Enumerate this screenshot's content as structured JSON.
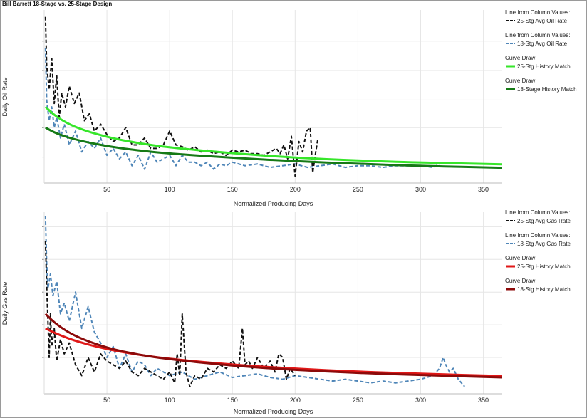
{
  "title": "Bill Barrett 18-Stage vs. 25-Stage Design",
  "colors": {
    "black_series": "#111111",
    "blue_series": "#4f86b8",
    "light_green": "#36e62a",
    "dark_green": "#167a16",
    "red": "#e01818",
    "dark_red": "#8c0a0a",
    "grid": "#e6e6e6"
  },
  "chart_data": [
    {
      "type": "line",
      "title": "",
      "xlabel": "Normalized Producing Days",
      "ylabel": "Daily Oil Rate",
      "xlim": [
        0,
        365
      ],
      "ylim": [
        0,
        100
      ],
      "xticks": [
        50,
        100,
        150,
        200,
        250,
        300,
        350
      ],
      "grid": true,
      "legend_position": "right",
      "legend": [
        {
          "header": "Line from Column Values:",
          "label": "25-Stg Avg Oil Rate"
        },
        {
          "header": "Line from Column Values:",
          "label": "18-Stg Avg Oil Rate"
        },
        {
          "header": "Curve Draw:",
          "label": "25-Stg History Match"
        },
        {
          "header": "Curve Draw:",
          "label": "18-Stage History Match"
        }
      ],
      "series": [
        {
          "name": "25-Stg Avg Oil Rate",
          "style": "dashed",
          "color_key": "black_series",
          "x": [
            1,
            2,
            4,
            6,
            8,
            10,
            12,
            14,
            17,
            20,
            24,
            28,
            32,
            36,
            40,
            45,
            50,
            55,
            60,
            65,
            70,
            75,
            80,
            85,
            90,
            95,
            100,
            105,
            110,
            115,
            120,
            125,
            130,
            135,
            140,
            145,
            150,
            155,
            160,
            165,
            170,
            175,
            180,
            185,
            188,
            191,
            194,
            197,
            200,
            203,
            206,
            209,
            212,
            214,
            216,
            218
          ],
          "values": [
            96,
            68,
            54,
            72,
            46,
            62,
            38,
            52,
            44,
            56,
            46,
            52,
            36,
            40,
            30,
            34,
            28,
            24,
            26,
            32,
            22,
            22,
            26,
            20,
            20,
            22,
            30,
            22,
            21,
            19,
            21,
            18,
            19,
            17,
            18,
            16,
            19,
            18,
            19,
            17,
            17,
            16,
            18,
            20,
            17,
            22,
            14,
            27,
            4,
            24,
            18,
            30,
            32,
            6,
            16,
            25
          ]
        },
        {
          "name": "18-Stg Avg Oil Rate",
          "style": "dashed",
          "color_key": "blue_series",
          "x": [
            1,
            2,
            4,
            6,
            8,
            10,
            13,
            16,
            20,
            25,
            30,
            35,
            40,
            45,
            50,
            55,
            60,
            65,
            70,
            75,
            80,
            85,
            90,
            95,
            100,
            105,
            110,
            115,
            120,
            125,
            130,
            135,
            140,
            145,
            150,
            160,
            170,
            180,
            190,
            200,
            210,
            220,
            230,
            240,
            250,
            260,
            270,
            280,
            290,
            300,
            310,
            315
          ],
          "values": [
            78,
            48,
            36,
            44,
            32,
            38,
            26,
            34,
            22,
            30,
            18,
            24,
            20,
            26,
            16,
            20,
            14,
            18,
            10,
            16,
            8,
            18,
            12,
            14,
            16,
            10,
            16,
            12,
            12,
            10,
            12,
            8,
            11,
            10,
            12,
            10,
            11,
            9,
            10,
            11,
            9,
            10,
            11,
            9,
            10,
            10,
            9,
            10,
            10,
            10,
            9,
            11
          ]
        },
        {
          "name": "25-Stg History Match",
          "style": "solid",
          "color_key": "light_green",
          "curve": "hyperbolic",
          "x": [
            1,
            10,
            25,
            50,
            75,
            100,
            150,
            200,
            250,
            300,
            365
          ],
          "values": [
            44,
            38,
            32,
            26.5,
            23,
            20.5,
            17.2,
            14.6,
            13,
            11.8,
            10.8
          ]
        },
        {
          "name": "18-Stage History Match",
          "style": "solid",
          "color_key": "dark_green",
          "curve": "hyperbolic",
          "x": [
            1,
            10,
            25,
            50,
            75,
            100,
            150,
            200,
            250,
            300,
            365
          ],
          "values": [
            32,
            28.5,
            25,
            21.2,
            18.8,
            17,
            14.6,
            12.6,
            11.1,
            9.9,
            8.8
          ]
        }
      ]
    },
    {
      "type": "line",
      "title": "",
      "xlabel": "Normalized Producing Days",
      "ylabel": "Daily Gas Rate",
      "xlim": [
        0,
        365
      ],
      "ylim": [
        0,
        100
      ],
      "xticks": [
        50,
        100,
        150,
        200,
        250,
        300,
        350
      ],
      "grid": true,
      "legend_position": "right",
      "legend": [
        {
          "header": "Line from Column Values:",
          "label": "25-Stg Avg Gas Rate"
        },
        {
          "header": "Line from Column Values:",
          "label": "18-Stg Avg Gas Rate"
        },
        {
          "header": "Curve Draw:",
          "label": "25-Stg History Match"
        },
        {
          "header": "Curve Draw:",
          "label": "18-Stg History Match"
        }
      ],
      "series": [
        {
          "name": "25-Stg Avg Gas Rate",
          "style": "dashed",
          "color_key": "black_series",
          "x": [
            1,
            2,
            3,
            4,
            5,
            6,
            8,
            10,
            13,
            16,
            20,
            25,
            30,
            35,
            40,
            45,
            50,
            55,
            60,
            65,
            70,
            75,
            80,
            85,
            90,
            95,
            100,
            104,
            106,
            108,
            110,
            113,
            116,
            120,
            125,
            130,
            135,
            140,
            145,
            150,
            155,
            158,
            160,
            163,
            166,
            170,
            175,
            180,
            184,
            187,
            190,
            193,
            196,
            200
          ],
          "values": [
            84,
            60,
            40,
            20,
            44,
            26,
            36,
            18,
            30,
            22,
            28,
            16,
            10,
            20,
            12,
            22,
            18,
            16,
            14,
            18,
            12,
            10,
            14,
            12,
            10,
            8,
            12,
            6,
            22,
            10,
            44,
            12,
            4,
            10,
            8,
            14,
            12,
            16,
            14,
            18,
            14,
            36,
            16,
            18,
            14,
            20,
            14,
            18,
            12,
            22,
            20,
            8,
            14,
            10
          ]
        },
        {
          "name": "18-Stg Avg Gas Rate",
          "style": "dashed",
          "color_key": "blue_series",
          "x": [
            1,
            2,
            3,
            5,
            7,
            10,
            13,
            16,
            20,
            25,
            30,
            35,
            40,
            45,
            50,
            55,
            60,
            65,
            70,
            75,
            80,
            85,
            90,
            95,
            100,
            110,
            120,
            130,
            140,
            150,
            160,
            170,
            180,
            190,
            200,
            210,
            220,
            230,
            240,
            250,
            260,
            270,
            280,
            290,
            300,
            310,
            315,
            318,
            320,
            323,
            326,
            330,
            335
          ],
          "values": [
            98,
            72,
            58,
            66,
            54,
            62,
            44,
            50,
            40,
            56,
            36,
            48,
            34,
            28,
            20,
            26,
            14,
            22,
            12,
            18,
            16,
            10,
            14,
            12,
            10,
            12,
            8,
            10,
            12,
            9,
            10,
            11,
            9,
            8,
            10,
            9,
            8,
            7,
            8,
            7,
            6,
            7,
            6,
            7,
            8,
            10,
            14,
            20,
            16,
            12,
            14,
            8,
            4
          ]
        },
        {
          "name": "25-Stg History Match",
          "style": "solid",
          "color_key": "red",
          "curve": "hyperbolic",
          "x": [
            1,
            10,
            25,
            50,
            75,
            100,
            150,
            200,
            250,
            300,
            365
          ],
          "values": [
            36,
            33,
            29,
            24.5,
            21.5,
            19.2,
            16,
            13.8,
            12.2,
            11,
            9.8
          ]
        },
        {
          "name": "18-Stg History Match",
          "style": "solid",
          "color_key": "dark_red",
          "curve": "hyperbolic",
          "x": [
            1,
            10,
            25,
            50,
            75,
            100,
            150,
            200,
            250,
            300,
            365
          ],
          "values": [
            44,
            38,
            31.5,
            25.2,
            21.5,
            19,
            15.4,
            13.1,
            11.5,
            10.3,
            9
          ]
        }
      ]
    }
  ]
}
